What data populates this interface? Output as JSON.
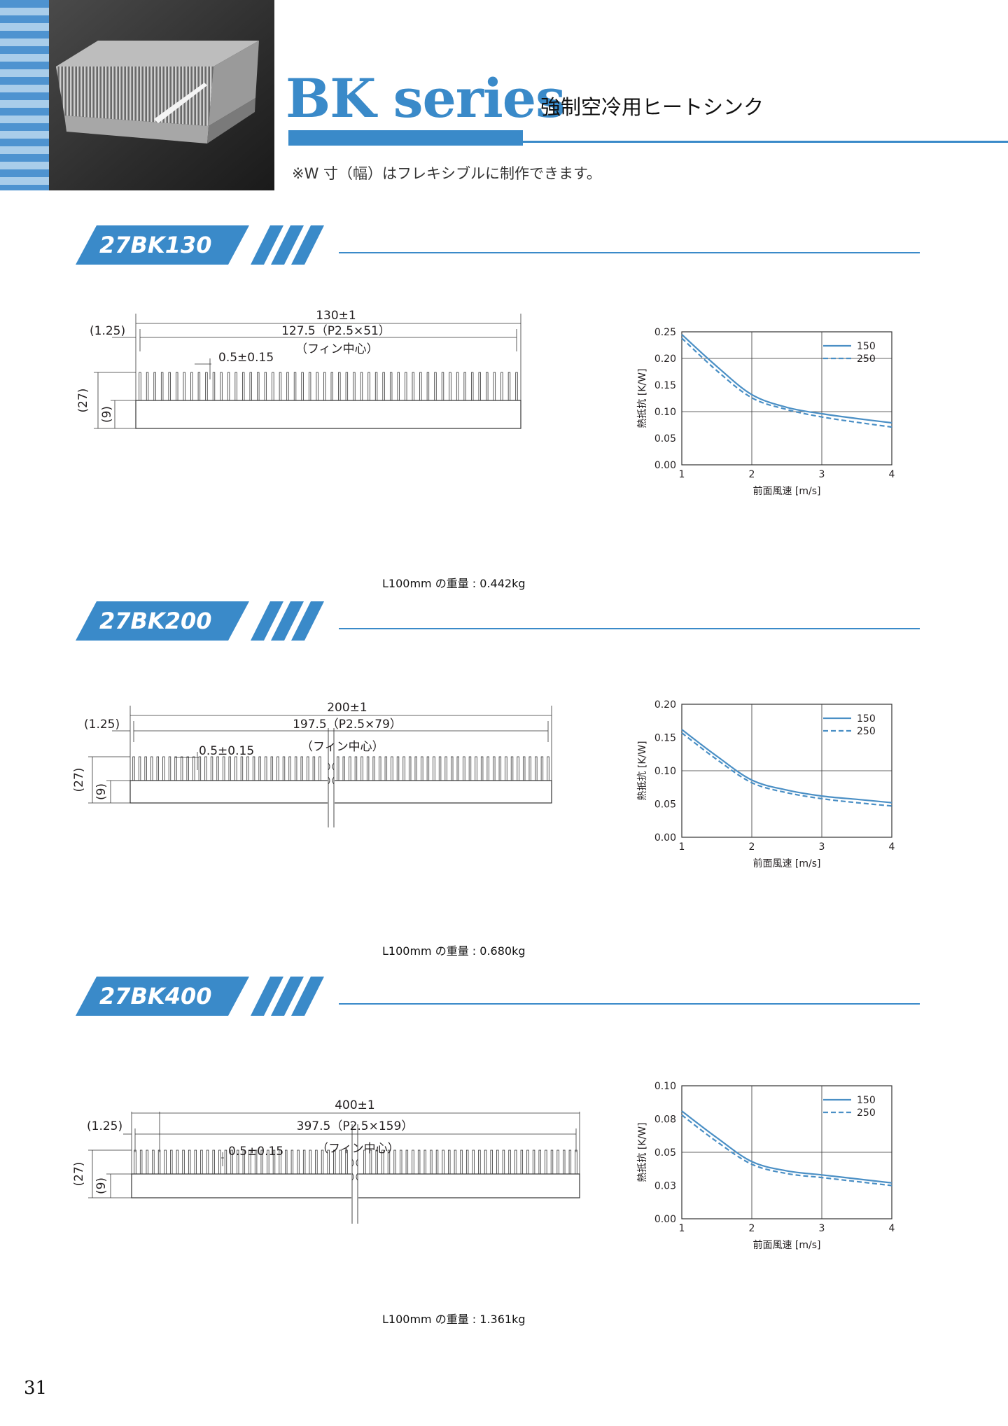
{
  "header": {
    "title": "BK series",
    "subtitle": "強制空冷用ヒートシンク",
    "note": "※W 寸（幅）はフレキシブルに制作できます。"
  },
  "colors": {
    "accent": "#3a8ac9",
    "stripe_dark": "#4e93d0",
    "stripe_light": "#a9cdea",
    "curve": "#4a8fc5"
  },
  "page_number": "31",
  "products": [
    {
      "name": "27BK130",
      "drawing": {
        "total_width": "130±1",
        "offset": "(1.25)",
        "pitch": "127.5（P2.5×51）",
        "fin_note": "（フィン中心）",
        "fin_thickness": "0.5±0.15",
        "height": "(27)",
        "base": "(9)",
        "fin_count": 52,
        "broken": false
      },
      "weight": "L100mm の重量 : 0.442kg",
      "chart": {
        "ylabel": "熱抵抗 [K/W]",
        "xlabel": "前面風速 [m/s]",
        "xticks": [
          "1",
          "2",
          "3",
          "4"
        ],
        "yticks": [
          "0.00",
          "0.05",
          "0.10",
          "0.15",
          "0.20",
          "0.25"
        ],
        "legend": [
          "150",
          "250"
        ]
      }
    },
    {
      "name": "27BK200",
      "drawing": {
        "total_width": "200±1",
        "offset": "(1.25)",
        "pitch": "197.5（P2.5×79）",
        "fin_note": "（フィン中心）",
        "fin_thickness": "0.5±0.15",
        "height": "(27)",
        "base": "(9)",
        "fin_count": 70,
        "broken": true
      },
      "weight": "L100mm の重量 : 0.680kg",
      "chart": {
        "ylabel": "熱抵抗 [K/W]",
        "xlabel": "前面風速 [m/s]",
        "xticks": [
          "1",
          "2",
          "3",
          "4"
        ],
        "yticks": [
          "0.00",
          "0.05",
          "0.10",
          "0.15",
          "0.20"
        ],
        "legend": [
          "150",
          "250"
        ]
      }
    },
    {
      "name": "27BK400",
      "drawing": {
        "total_width": "400±1",
        "offset": "(1.25)",
        "pitch": "397.5（P2.5×159）",
        "fin_note": "（フィン中心）",
        "fin_thickness": "0.5±0.15",
        "height": "(27)",
        "base": "(9)",
        "fin_count": 74,
        "broken": true
      },
      "weight": "L100mm の重量 : 1.361kg",
      "chart": {
        "ylabel": "熱抵抗 [K/W]",
        "xlabel": "前面風速 [m/s]",
        "xticks": [
          "1",
          "2",
          "3",
          "4"
        ],
        "yticks": [
          "0.00",
          "0.03",
          "0.05",
          "0.08",
          "0.10"
        ],
        "legend": [
          "150",
          "250"
        ]
      }
    }
  ],
  "chart_data": [
    {
      "type": "line",
      "title": "",
      "xlabel": "前面風速 [m/s]",
      "ylabel": "熱抵抗 [K/W]",
      "x": [
        1,
        1.5,
        2,
        2.5,
        3,
        3.5,
        4
      ],
      "xlim": [
        1,
        4
      ],
      "ylim": [
        0,
        0.25
      ],
      "yticks": [
        0,
        0.05,
        0.1,
        0.15,
        0.2,
        0.25
      ],
      "grid": true,
      "legend": "top-right",
      "series": [
        {
          "name": "150",
          "style": "solid",
          "values": [
            0.245,
            0.185,
            0.132,
            0.108,
            0.096,
            0.087,
            0.079
          ]
        },
        {
          "name": "250",
          "style": "dashed",
          "values": [
            0.238,
            0.177,
            0.126,
            0.104,
            0.09,
            0.08,
            0.071
          ]
        }
      ]
    },
    {
      "type": "line",
      "title": "",
      "xlabel": "前面風速 [m/s]",
      "ylabel": "熱抵抗 [K/W]",
      "x": [
        1,
        1.5,
        2,
        2.5,
        3,
        3.5,
        4
      ],
      "xlim": [
        1,
        4
      ],
      "ylim": [
        0,
        0.2
      ],
      "yticks": [
        0,
        0.05,
        0.1,
        0.15,
        0.2
      ],
      "grid": true,
      "legend": "top-right",
      "series": [
        {
          "name": "150",
          "style": "solid",
          "values": [
            0.162,
            0.122,
            0.086,
            0.071,
            0.062,
            0.057,
            0.052
          ]
        },
        {
          "name": "250",
          "style": "dashed",
          "values": [
            0.157,
            0.117,
            0.082,
            0.067,
            0.058,
            0.052,
            0.047
          ]
        }
      ]
    },
    {
      "type": "line",
      "title": "",
      "xlabel": "前面風速 [m/s]",
      "ylabel": "熱抵抗 [K/W]",
      "x": [
        1,
        1.5,
        2,
        2.5,
        3,
        3.5,
        4
      ],
      "xlim": [
        1,
        4
      ],
      "ylim": [
        0,
        0.1
      ],
      "yticks": [
        0,
        0.025,
        0.05,
        0.075,
        0.1
      ],
      "ytick_labels": [
        "0.00",
        "0.03",
        "0.05",
        "0.08",
        "0.10"
      ],
      "grid": true,
      "legend": "top-right",
      "series": [
        {
          "name": "150",
          "style": "solid",
          "values": [
            0.081,
            0.061,
            0.043,
            0.036,
            0.033,
            0.03,
            0.027
          ]
        },
        {
          "name": "250",
          "style": "dashed",
          "values": [
            0.078,
            0.058,
            0.041,
            0.034,
            0.031,
            0.028,
            0.025
          ]
        }
      ]
    }
  ]
}
